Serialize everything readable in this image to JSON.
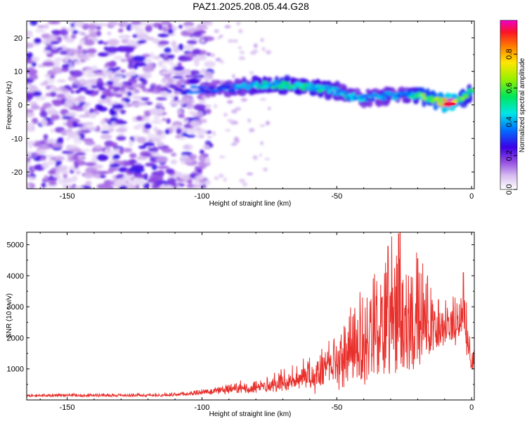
{
  "title": "PAZ1.2025.208.05.44.G28",
  "chart_data": [
    {
      "type": "heatmap",
      "xlabel": "Height of straight line (km)",
      "ylabel": "Frequency (Hz)",
      "xlim": [
        -165,
        1
      ],
      "ylim": [
        -25,
        25
      ],
      "xticks": [
        -150,
        -100,
        -50,
        0
      ],
      "yticks": [
        -20,
        -10,
        0,
        10,
        20
      ],
      "colorbar": {
        "label": "Normalized spectral amplitude",
        "range": [
          0,
          1
        ],
        "ticks": [
          0.0,
          0.2,
          0.4,
          0.6,
          0.8
        ],
        "colormap": "gist_ncar-like (white-purple-blue-cyan-green-yellow-orange-red-magenta)"
      },
      "ridge": {
        "description": "Dominant spectral ridge vs height",
        "x": [
          -145,
          -120,
          -100,
          -90,
          -80,
          -70,
          -60,
          -50,
          -42,
          -35,
          -25,
          -18,
          -12,
          -8,
          -4,
          0
        ],
        "freq": [
          4.5,
          5,
          4.5,
          5,
          6,
          6,
          5.5,
          4,
          2,
          2.5,
          3,
          2.5,
          1,
          0.5,
          1.5,
          4
        ],
        "amplitude": [
          0.15,
          0.1,
          0.3,
          0.35,
          0.45,
          0.5,
          0.5,
          0.45,
          0.4,
          0.4,
          0.35,
          0.6,
          0.7,
          1.0,
          0.6,
          0.5
        ]
      }
    },
    {
      "type": "line",
      "xlabel": "Height of straight line (km)",
      "ylabel": "SNR (10 * v/v)",
      "xlim": [
        -165,
        1
      ],
      "ylim": [
        0,
        5400
      ],
      "xticks": [
        -150,
        -100,
        -50,
        0
      ],
      "yticks": [
        1000,
        2000,
        3000,
        4000,
        5000
      ],
      "color": "#e8302c",
      "series": [
        {
          "envelope_x": [
            -165,
            -140,
            -110,
            -100,
            -90,
            -80,
            -70,
            -60,
            -50,
            -45,
            -40,
            -35,
            -30,
            -27,
            -25,
            -22,
            -18,
            -15,
            -10,
            -5,
            -3,
            -1,
            0,
            1
          ],
          "envelope_base": [
            120,
            120,
            130,
            200,
            250,
            300,
            400,
            550,
            800,
            1000,
            1100,
            1300,
            1400,
            1500,
            1400,
            1600,
            1800,
            1900,
            2000,
            2200,
            2300,
            1500,
            1000,
            1200
          ],
          "envelope_amp": [
            60,
            70,
            80,
            120,
            200,
            300,
            450,
            700,
            1100,
            1500,
            1900,
            2400,
            2900,
            3400,
            3100,
            2600,
            2000,
            1300,
            900,
            800,
            1400,
            800,
            300,
            500
          ],
          "peaks": [
            {
              "x": -27,
              "y": 5350
            },
            {
              "x": -31,
              "y": 4950
            },
            {
              "x": -20,
              "y": 4550
            },
            {
              "x": -3,
              "y": 4100
            }
          ]
        }
      ]
    }
  ]
}
